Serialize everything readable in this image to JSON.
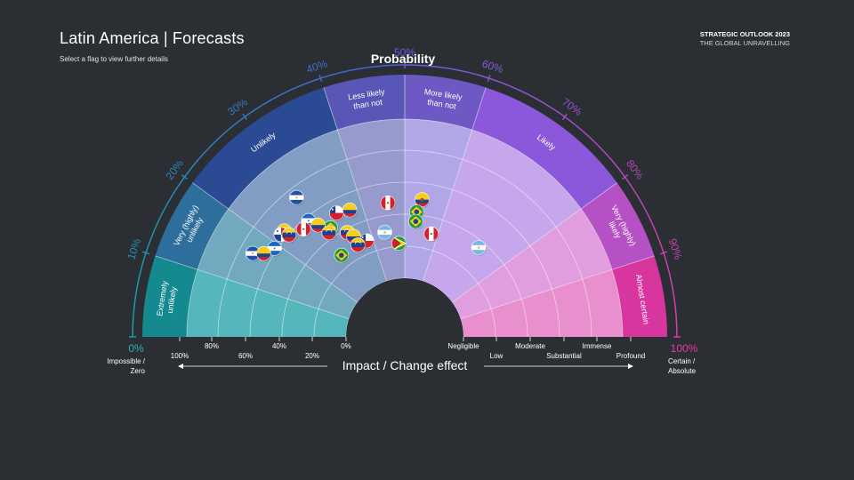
{
  "header": {
    "title": "Latin America | Forecasts",
    "subtitle": "Select a flag to view further details",
    "brand_line1": "STRATEGIC OUTLOOK 2023",
    "brand_line2": "THE GLOBAL UNRAVELLING"
  },
  "chart_data": {
    "type": "scatter",
    "title": "Probability",
    "xlabel": "Impact / Change effect",
    "probability_ticks": [
      "0%",
      "10%",
      "20%",
      "30%",
      "40%",
      "50%",
      "60%",
      "70%",
      "80%",
      "90%",
      "100%"
    ],
    "endpoint_left": [
      "Impossible /",
      "Zero"
    ],
    "endpoint_right": [
      "Certain /",
      "Absolute"
    ],
    "bands": [
      {
        "label": [
          "Extremely",
          "unlikely"
        ],
        "from": 0,
        "to": 10,
        "outer": "#14898f",
        "inner": "#5bc3c5"
      },
      {
        "label": [
          "Very (highly)",
          "unlikely"
        ],
        "from": 10,
        "to": 20,
        "outer": "#2d6e9c",
        "inner": "#7ab3c8"
      },
      {
        "label": [
          "Unlikely"
        ],
        "from": 20,
        "to": 40,
        "outer": "#2b4a94",
        "inner": "#8aa6cf"
      },
      {
        "label": [
          "Less likely",
          "than not"
        ],
        "from": 40,
        "to": 50,
        "outer": "#5857b8",
        "inner": "#a2a3d8"
      },
      {
        "label": [
          "More likely",
          "than not"
        ],
        "from": 50,
        "to": 60,
        "outer": "#6e58c4",
        "inner": "#b2a7e6"
      },
      {
        "label": [
          "Likely"
        ],
        "from": 60,
        "to": 80,
        "outer": "#8c58db",
        "inner": "#c6a7ec"
      },
      {
        "label": [
          "Very (highly)",
          "likely"
        ],
        "from": 80,
        "to": 90,
        "outer": "#b651c5",
        "inner": "#e09ddf"
      },
      {
        "label": [
          "Almost certain"
        ],
        "from": 90,
        "to": 100,
        "outer": "#d9359f",
        "inner": "#ea8fcd"
      }
    ],
    "left_impact_ticks": [
      "100%",
      "80%",
      "60%",
      "40%",
      "20%",
      "0%"
    ],
    "right_impact_ticks": [
      "Negligible",
      "Low",
      "Moderate",
      "Substantial",
      "Immense",
      "Profound"
    ],
    "points": [
      {
        "country": "El Salvador",
        "flag": "sv",
        "probability": 29,
        "impact": 3.7
      },
      {
        "country": "Peru",
        "flag": "pe",
        "probability": 46,
        "impact": 2.4
      },
      {
        "country": "Chile",
        "flag": "cl",
        "probability": 34,
        "impact": 2.6
      },
      {
        "country": "Colombia",
        "flag": "co",
        "probability": 37,
        "impact": 2.5
      },
      {
        "country": "Argentina",
        "flag": "ar",
        "probability": 44,
        "impact": 1.5
      },
      {
        "country": "Honduras",
        "flag": "hn",
        "probability": 28,
        "impact": 2.9
      },
      {
        "country": "Venezuela",
        "flag": "ve",
        "probability": 23,
        "impact": 3.2
      },
      {
        "country": "Brazil",
        "flag": "br",
        "probability": 31,
        "impact": 2.3
      },
      {
        "country": "Argentina",
        "flag": "ar",
        "probability": 34,
        "impact": 1.9
      },
      {
        "country": "Colombia",
        "flag": "co",
        "probability": 29,
        "impact": 2.6
      },
      {
        "country": "Venezuela",
        "flag": "ve",
        "probability": 34,
        "impact": 1.9
      },
      {
        "country": "Venezuela",
        "flag": "ve",
        "probability": 30,
        "impact": 2.2
      },
      {
        "country": "Colombia",
        "flag": "co",
        "probability": 35,
        "impact": 1.7
      },
      {
        "country": "Chile",
        "flag": "cl",
        "probability": 38,
        "impact": 1.4
      },
      {
        "country": "Venezuela",
        "flag": "ve",
        "probability": 35,
        "impact": 1.4
      },
      {
        "country": "Panama",
        "flag": "pa",
        "probability": 22,
        "impact": 3.2
      },
      {
        "country": "Honduras",
        "flag": "hn",
        "probability": 19,
        "impact": 3.1
      },
      {
        "country": "Venezuela",
        "flag": "ve",
        "probability": 23,
        "impact": 3.0
      },
      {
        "country": "Peru",
        "flag": "pe",
        "probability": 26,
        "impact": 2.8
      },
      {
        "country": "El Salvador",
        "flag": "sv",
        "probability": 16,
        "impact": 3.6
      },
      {
        "country": "Colombia",
        "flag": "co",
        "probability": 17,
        "impact": 3.3
      },
      {
        "country": "Brazil",
        "flag": "br",
        "probability": 29,
        "impact": 1.4
      },
      {
        "country": "Ecuador",
        "flag": "ec",
        "probability": 54,
        "impact": 2.5
      },
      {
        "country": "Brazil",
        "flag": "br",
        "probability": 53,
        "impact": 2.1
      },
      {
        "country": "Brazil",
        "flag": "br",
        "probability": 53,
        "impact": 1.8
      },
      {
        "country": "Guyana",
        "flag": "gy",
        "probability": 48,
        "impact": 1.1
      },
      {
        "country": "Peru",
        "flag": "pe",
        "probability": 58,
        "impact": 1.5
      },
      {
        "country": "Argentina",
        "flag": "ar",
        "probability": 72,
        "impact": 1.8
      }
    ]
  }
}
